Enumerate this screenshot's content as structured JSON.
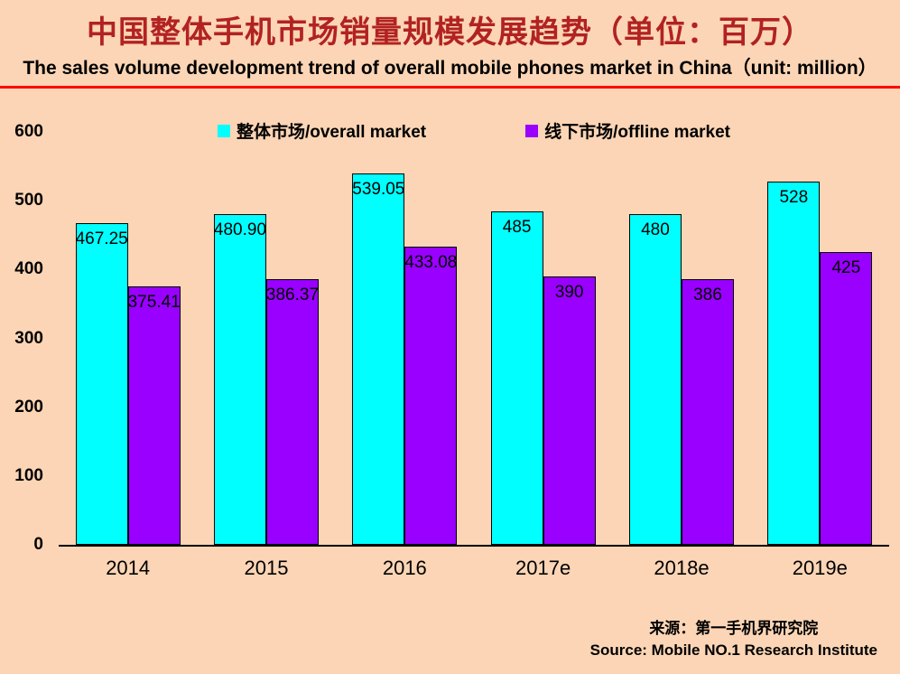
{
  "header": {
    "title": "中国整体手机市场销量规模发展趋势（单位：百万）",
    "subtitle": "The sales volume development trend of overall mobile phones market in China（unit: million）"
  },
  "chart_data": {
    "type": "bar",
    "title": "中国整体手机市场销量规模发展趋势（单位：百万）",
    "xlabel": "",
    "ylabel": "",
    "categories": [
      "2014",
      "2015",
      "2016",
      "2017e",
      "2018e",
      "2019e"
    ],
    "series": [
      {
        "name": "整体市场/overall market",
        "color": "#00FFFF",
        "values": [
          467.25,
          480.9,
          539.05,
          485,
          480,
          528
        ],
        "labels": [
          "467.25",
          "480.90",
          "539.05",
          "485",
          "480",
          "528"
        ]
      },
      {
        "name": "线下市场/offline market",
        "color": "#9900FF",
        "values": [
          375.41,
          386.37,
          433.08,
          390,
          386,
          425
        ],
        "labels": [
          "375.41",
          "386.37",
          "433.08",
          "390",
          "386",
          "425"
        ]
      }
    ],
    "ylim": [
      0,
      600
    ],
    "yticks": [
      0,
      100,
      200,
      300,
      400,
      500,
      600
    ],
    "grid": false,
    "legend_position": "top-center"
  },
  "footer": {
    "source_cn": "来源：第一手机界研究院",
    "source_en": "Source: Mobile NO.1 Research Institute"
  },
  "colors": {
    "background": "#FBD5B5",
    "title": "#B22222",
    "divider": "#FF0000",
    "bar_border": "#000000"
  }
}
